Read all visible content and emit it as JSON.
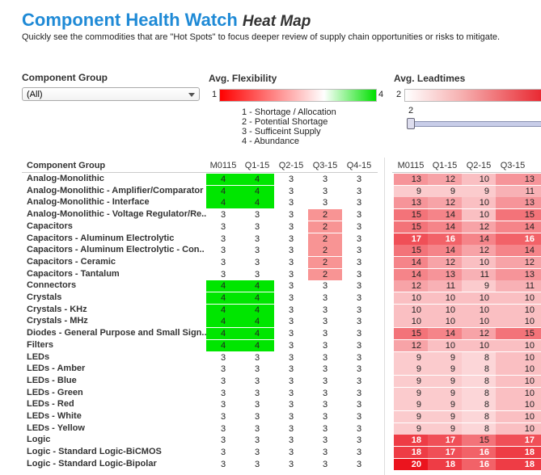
{
  "header": {
    "title": "Component Health Watch",
    "subtitle": "Heat Map",
    "description": "Quickly see the commodities that are \"Hot Spots\" to focus deeper review of supply chain opportunities or risks to mitigate."
  },
  "filters": {
    "component_group": {
      "label": "Component Group",
      "selected": "(All)"
    },
    "flexibility": {
      "label": "Avg. Flexibility",
      "min": 1,
      "max": 4,
      "legend": [
        "1 - Shortage / Allocation",
        "2 - Potential Shortage",
        "3 - Sufficeint Supply",
        "4 - Abundance"
      ]
    },
    "leadtimes": {
      "label": "Avg. Leadtimes",
      "min": 2,
      "slider_value": 2
    }
  },
  "table": {
    "row_header": "Component Group",
    "flexibility_columns": [
      "M0115",
      "Q1-15",
      "Q2-15",
      "Q3-15",
      "Q4-15"
    ],
    "leadtime_columns": [
      "M0115",
      "Q1-15",
      "Q2-15",
      "Q3-15"
    ],
    "rows": [
      {
        "label": "Analog-Monolithic",
        "flexibility": [
          4,
          4,
          3,
          3,
          3
        ],
        "leadtimes": [
          13,
          12,
          10,
          13
        ]
      },
      {
        "label": "Analog-Monolithic - Amplifier/Comparator",
        "flexibility": [
          4,
          4,
          3,
          3,
          3
        ],
        "leadtimes": [
          9,
          9,
          9,
          11
        ]
      },
      {
        "label": "Analog-Monolithic - Interface",
        "flexibility": [
          4,
          4,
          3,
          3,
          3
        ],
        "leadtimes": [
          13,
          12,
          10,
          13
        ]
      },
      {
        "label": "Analog-Monolithic - Voltage Regulator/Re..",
        "flexibility": [
          3,
          3,
          3,
          2,
          3
        ],
        "leadtimes": [
          15,
          14,
          10,
          15
        ]
      },
      {
        "label": "Capacitors",
        "flexibility": [
          3,
          3,
          3,
          2,
          3
        ],
        "leadtimes": [
          15,
          14,
          12,
          14
        ]
      },
      {
        "label": "Capacitors - Aluminum Electrolytic",
        "flexibility": [
          3,
          3,
          3,
          2,
          3
        ],
        "leadtimes": [
          17,
          16,
          14,
          16
        ]
      },
      {
        "label": "Capacitors - Aluminum Electrolytic - Con..",
        "flexibility": [
          3,
          3,
          3,
          2,
          3
        ],
        "leadtimes": [
          15,
          14,
          12,
          14
        ]
      },
      {
        "label": "Capacitors - Ceramic",
        "flexibility": [
          3,
          3,
          3,
          2,
          3
        ],
        "leadtimes": [
          14,
          12,
          10,
          12
        ]
      },
      {
        "label": "Capacitors - Tantalum",
        "flexibility": [
          3,
          3,
          3,
          2,
          3
        ],
        "leadtimes": [
          14,
          13,
          11,
          13
        ]
      },
      {
        "label": "Connectors",
        "flexibility": [
          4,
          4,
          3,
          3,
          3
        ],
        "leadtimes": [
          12,
          11,
          9,
          11
        ]
      },
      {
        "label": "Crystals",
        "flexibility": [
          4,
          4,
          3,
          3,
          3
        ],
        "leadtimes": [
          10,
          10,
          10,
          10
        ]
      },
      {
        "label": "Crystals - KHz",
        "flexibility": [
          4,
          4,
          3,
          3,
          3
        ],
        "leadtimes": [
          10,
          10,
          10,
          10
        ]
      },
      {
        "label": "Crystals - MHz",
        "flexibility": [
          4,
          4,
          3,
          3,
          3
        ],
        "leadtimes": [
          10,
          10,
          10,
          10
        ]
      },
      {
        "label": "Diodes - General Purpose and Small Sign..",
        "flexibility": [
          4,
          4,
          3,
          3,
          3
        ],
        "leadtimes": [
          15,
          14,
          12,
          15
        ]
      },
      {
        "label": "Filters",
        "flexibility": [
          4,
          4,
          3,
          3,
          3
        ],
        "leadtimes": [
          12,
          10,
          10,
          10
        ]
      },
      {
        "label": "LEDs",
        "flexibility": [
          3,
          3,
          3,
          3,
          3
        ],
        "leadtimes": [
          9,
          9,
          8,
          10
        ]
      },
      {
        "label": "LEDs - Amber",
        "flexibility": [
          3,
          3,
          3,
          3,
          3
        ],
        "leadtimes": [
          9,
          9,
          8,
          10
        ]
      },
      {
        "label": "LEDs - Blue",
        "flexibility": [
          3,
          3,
          3,
          3,
          3
        ],
        "leadtimes": [
          9,
          9,
          8,
          10
        ]
      },
      {
        "label": "LEDs - Green",
        "flexibility": [
          3,
          3,
          3,
          3,
          3
        ],
        "leadtimes": [
          9,
          9,
          8,
          10
        ]
      },
      {
        "label": "LEDs - Red",
        "flexibility": [
          3,
          3,
          3,
          3,
          3
        ],
        "leadtimes": [
          9,
          9,
          8,
          10
        ]
      },
      {
        "label": "LEDs - White",
        "flexibility": [
          3,
          3,
          3,
          3,
          3
        ],
        "leadtimes": [
          9,
          9,
          8,
          10
        ]
      },
      {
        "label": "LEDs - Yellow",
        "flexibility": [
          3,
          3,
          3,
          3,
          3
        ],
        "leadtimes": [
          9,
          9,
          8,
          10
        ]
      },
      {
        "label": "Logic",
        "flexibility": [
          3,
          3,
          3,
          3,
          3
        ],
        "leadtimes": [
          18,
          17,
          15,
          17
        ]
      },
      {
        "label": "Logic - Standard Logic-BiCMOS",
        "flexibility": [
          3,
          3,
          3,
          3,
          3
        ],
        "leadtimes": [
          18,
          17,
          16,
          18
        ]
      },
      {
        "label": "Logic - Standard Logic-Bipolar",
        "flexibility": [
          3,
          3,
          3,
          3,
          3
        ],
        "leadtimes": [
          20,
          18,
          16,
          18
        ]
      }
    ]
  }
}
